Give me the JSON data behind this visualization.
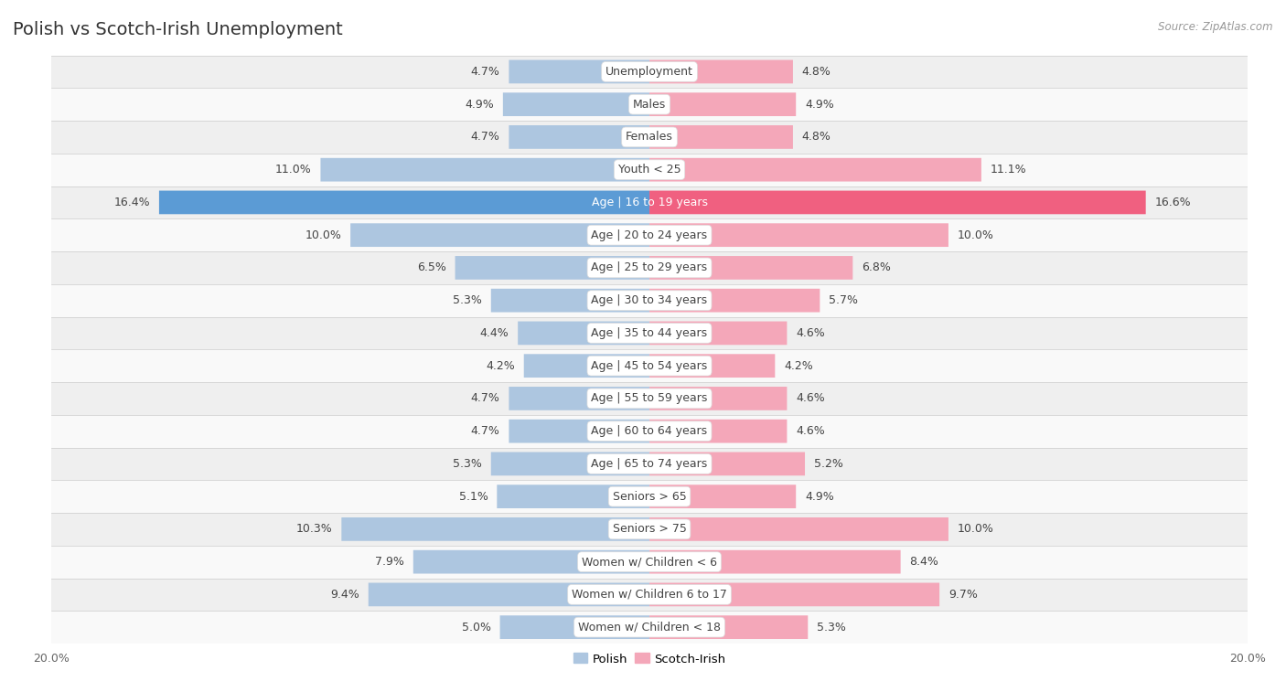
{
  "title": "Polish vs Scotch-Irish Unemployment",
  "source": "Source: ZipAtlas.com",
  "categories": [
    "Unemployment",
    "Males",
    "Females",
    "Youth < 25",
    "Age | 16 to 19 years",
    "Age | 20 to 24 years",
    "Age | 25 to 29 years",
    "Age | 30 to 34 years",
    "Age | 35 to 44 years",
    "Age | 45 to 54 years",
    "Age | 55 to 59 years",
    "Age | 60 to 64 years",
    "Age | 65 to 74 years",
    "Seniors > 65",
    "Seniors > 75",
    "Women w/ Children < 6",
    "Women w/ Children 6 to 17",
    "Women w/ Children < 18"
  ],
  "polish": [
    4.7,
    4.9,
    4.7,
    11.0,
    16.4,
    10.0,
    6.5,
    5.3,
    4.4,
    4.2,
    4.7,
    4.7,
    5.3,
    5.1,
    10.3,
    7.9,
    9.4,
    5.0
  ],
  "scotch_irish": [
    4.8,
    4.9,
    4.8,
    11.1,
    16.6,
    10.0,
    6.8,
    5.7,
    4.6,
    4.2,
    4.6,
    4.6,
    5.2,
    4.9,
    10.0,
    8.4,
    9.7,
    5.3
  ],
  "polish_color": "#adc6e0",
  "scotch_irish_color": "#f4a7b9",
  "highlight_polish_color": "#5b9bd5",
  "highlight_scotch_color": "#f06080",
  "row_bg_odd": "#efefef",
  "row_bg_even": "#f9f9f9",
  "axis_max": 20.0,
  "bar_height": 0.72,
  "title_fontsize": 14,
  "label_fontsize": 9,
  "value_fontsize": 9
}
